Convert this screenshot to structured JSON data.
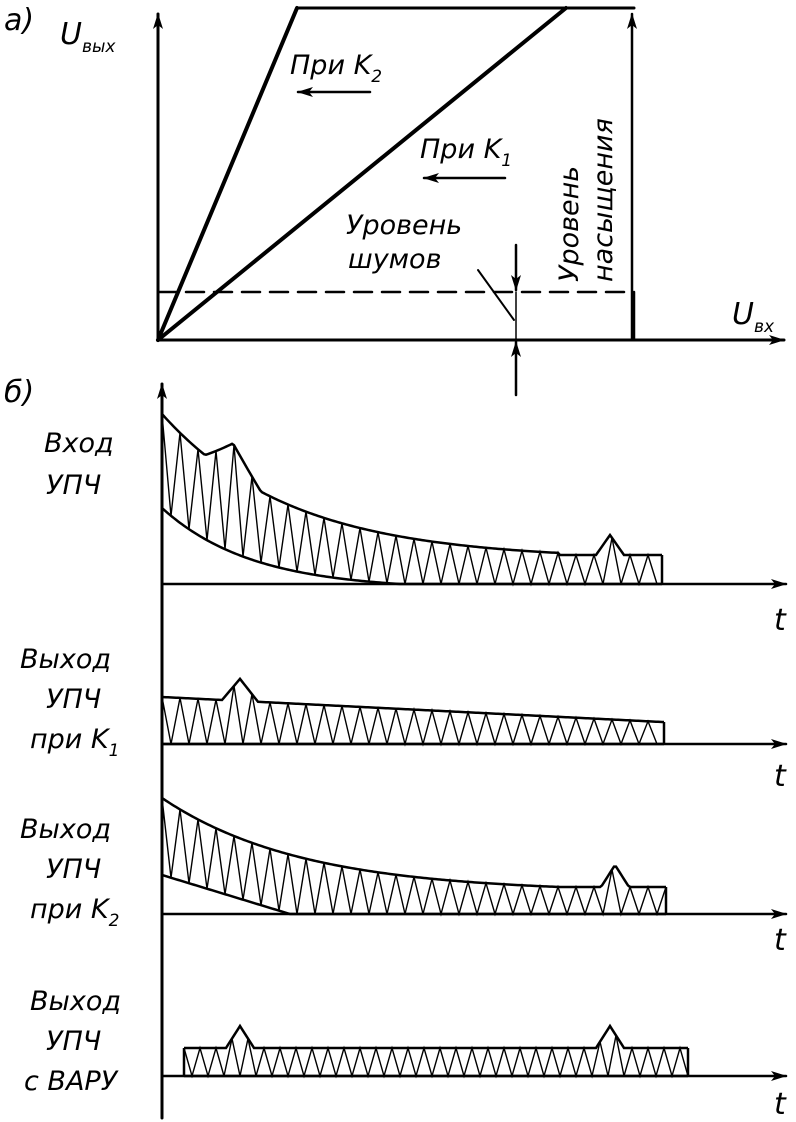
{
  "panel_a": {
    "tag": "а)",
    "y_axis_label": "U",
    "y_axis_sub": "вых",
    "x_axis_label": "U",
    "x_axis_sub": "вх",
    "curve_k2_label": "При K",
    "curve_k2_sub": "2",
    "curve_k1_label": "При K",
    "curve_k1_sub": "1",
    "noise_line1": "Уровень",
    "noise_line2": "шумов",
    "saturation_line1": "Уровень",
    "saturation_line2": "насыщения"
  },
  "panel_b": {
    "tag": "б)",
    "time_label": "t",
    "tracks": [
      {
        "lines": [
          "Вход",
          "УПЧ"
        ],
        "sub": ""
      },
      {
        "lines": [
          "Выход",
          "УПЧ",
          "при K"
        ],
        "sub": "1"
      },
      {
        "lines": [
          "Выход",
          "УПЧ",
          "при K"
        ],
        "sub": "2"
      },
      {
        "lines": [
          "Выход",
          "УПЧ",
          "с ВАРУ"
        ],
        "sub": ""
      }
    ]
  }
}
